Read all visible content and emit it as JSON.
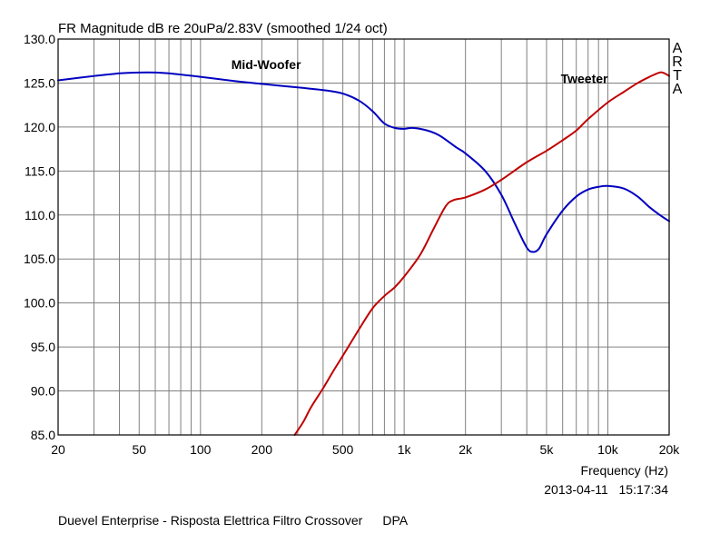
{
  "chart_data": {
    "type": "line",
    "title": "FR Magnitude dB re 20uPa/2.83V (smoothed 1/24 oct)",
    "xlabel": "Frequency (Hz)",
    "x_scale": "log",
    "xlim": [
      20,
      20000
    ],
    "ylim": [
      85,
      130
    ],
    "x_tick_values": [
      20,
      50,
      100,
      200,
      500,
      1000,
      2000,
      5000,
      10000,
      20000
    ],
    "x_tick_labels": [
      "20",
      "50",
      "100",
      "200",
      "500",
      "1k",
      "2k",
      "5k",
      "10k",
      "20k"
    ],
    "y_tick_values": [
      85,
      90,
      95,
      100,
      105,
      110,
      115,
      120,
      125,
      130
    ],
    "y_tick_labels": [
      "85.0",
      "90.0",
      "95.0",
      "100.0",
      "105.0",
      "110.0",
      "115.0",
      "120.0",
      "125.0",
      "130.0"
    ],
    "grid": true,
    "watermark": [
      "A",
      "R",
      "T",
      "A"
    ],
    "timestamp": "2013-04-11   15:17:34",
    "series": [
      {
        "name": "Mid-Woofer",
        "color": "#0000c0",
        "points": [
          [
            20,
            125.3
          ],
          [
            30,
            125.8
          ],
          [
            40,
            126.1
          ],
          [
            50,
            126.2
          ],
          [
            60,
            126.2
          ],
          [
            70,
            126.1
          ],
          [
            100,
            125.7
          ],
          [
            150,
            125.2
          ],
          [
            200,
            124.9
          ],
          [
            300,
            124.5
          ],
          [
            400,
            124.2
          ],
          [
            500,
            123.8
          ],
          [
            600,
            123.0
          ],
          [
            700,
            121.8
          ],
          [
            800,
            120.4
          ],
          [
            900,
            119.9
          ],
          [
            1000,
            119.8
          ],
          [
            1100,
            119.9
          ],
          [
            1300,
            119.6
          ],
          [
            1500,
            119.0
          ],
          [
            1800,
            117.7
          ],
          [
            2000,
            117.0
          ],
          [
            2500,
            115.0
          ],
          [
            3000,
            112.3
          ],
          [
            3500,
            109.0
          ],
          [
            4000,
            106.3
          ],
          [
            4300,
            105.8
          ],
          [
            4600,
            106.2
          ],
          [
            5000,
            107.8
          ],
          [
            6000,
            110.5
          ],
          [
            7000,
            112.1
          ],
          [
            8000,
            112.9
          ],
          [
            9000,
            113.2
          ],
          [
            10000,
            113.3
          ],
          [
            12000,
            113.0
          ],
          [
            14000,
            112.1
          ],
          [
            16000,
            110.9
          ],
          [
            18000,
            110.0
          ],
          [
            20000,
            109.3
          ]
        ]
      },
      {
        "name": "Tweeter",
        "color": "#c00000",
        "points": [
          [
            290,
            85.0
          ],
          [
            320,
            86.5
          ],
          [
            350,
            88.2
          ],
          [
            400,
            90.3
          ],
          [
            450,
            92.3
          ],
          [
            500,
            94.0
          ],
          [
            600,
            97.0
          ],
          [
            700,
            99.4
          ],
          [
            800,
            100.8
          ],
          [
            900,
            101.8
          ],
          [
            1000,
            103.0
          ],
          [
            1200,
            105.5
          ],
          [
            1400,
            108.5
          ],
          [
            1600,
            111.0
          ],
          [
            1750,
            111.7
          ],
          [
            2000,
            112.0
          ],
          [
            2500,
            112.9
          ],
          [
            3000,
            114.0
          ],
          [
            4000,
            116.0
          ],
          [
            5000,
            117.3
          ],
          [
            6000,
            118.5
          ],
          [
            7000,
            119.6
          ],
          [
            8000,
            120.9
          ],
          [
            10000,
            122.8
          ],
          [
            12000,
            124.0
          ],
          [
            14000,
            125.0
          ],
          [
            16000,
            125.7
          ],
          [
            18000,
            126.2
          ],
          [
            19000,
            126.1
          ],
          [
            20000,
            125.8
          ]
        ]
      }
    ]
  },
  "footer": {
    "company": "Duevel Enterprise - Risposta Elettrica Filtro Crossover",
    "tag": "DPA"
  }
}
